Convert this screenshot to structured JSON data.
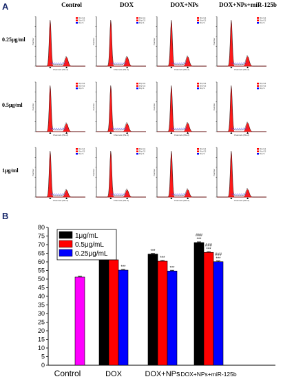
{
  "panel_a": {
    "letter": "A",
    "columns": [
      "Control",
      "DOX",
      "DOX+NPs",
      "DOX+NPs+miR-125b"
    ],
    "rows": [
      "0.25μg/ml",
      "0.5μg/ml",
      "1μg/ml"
    ],
    "x_axis_label": "Channels (PE-A)",
    "y_axis_label": "Number",
    "legend_entries": [
      "Dip G1",
      "Dip G2",
      "Dip S"
    ]
  },
  "panel_b": {
    "letter": "B"
  },
  "chart_data": {
    "type": "bar",
    "categories": [
      "Control",
      "DOX",
      "DOX+NPs",
      "DOX+NPs+miR-125b"
    ],
    "series": [
      {
        "name": "1μg/mL",
        "color": "#000000",
        "values": [
          null,
          65.2,
          64.5,
          71.2
        ],
        "errors": [
          null,
          0.4,
          0.4,
          0.4
        ],
        "annotations": [
          "",
          "***",
          "***",
          "***|###"
        ]
      },
      {
        "name": "0.5μg/mL",
        "color": "#ff0000",
        "values": [
          null,
          61.2,
          60.4,
          65.5
        ],
        "errors": [
          null,
          0.4,
          0.4,
          0.4
        ],
        "annotations": [
          "",
          "***",
          "***",
          "***|###"
        ]
      },
      {
        "name": "0.25μg/mL",
        "color": "#0000ff",
        "values": [
          null,
          55.2,
          54.7,
          60.1
        ],
        "errors": [
          null,
          0.4,
          0.4,
          0.4
        ],
        "annotations": [
          "",
          "***",
          "***",
          "***|###"
        ]
      }
    ],
    "control": {
      "value": 51.2,
      "error": 0.4,
      "color": "#ff00ff"
    },
    "ylim": [
      0,
      80
    ],
    "yticks": [
      0,
      5,
      10,
      15,
      20,
      25,
      30,
      35,
      40,
      45,
      50,
      55,
      60,
      65,
      70,
      75,
      80
    ],
    "xlabel": "",
    "ylabel": "",
    "legend": "top-left"
  }
}
